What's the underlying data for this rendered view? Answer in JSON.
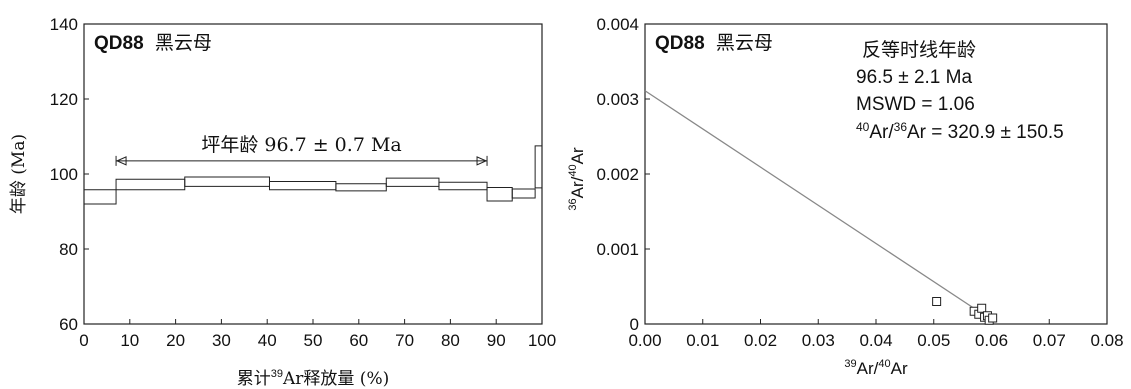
{
  "chart_data": [
    {
      "type": "step",
      "title": "",
      "sample": "QD88",
      "mineral": "黑云母",
      "xlabel": "累计39Ar释放量 (%)",
      "xlabel_parts": {
        "pre": "累计",
        "sup": "39",
        "post": "Ar释放量 (%)"
      },
      "ylabel": "年龄 (Ma)",
      "xlim": [
        0,
        100
      ],
      "ylim": [
        60,
        140
      ],
      "xticks": [
        0,
        10,
        20,
        30,
        40,
        50,
        60,
        70,
        80,
        90,
        100
      ],
      "yticks": [
        60,
        80,
        100,
        120,
        140
      ],
      "steps": [
        {
          "x0": 0,
          "x1": 7,
          "low": 92.0,
          "high": 95.8
        },
        {
          "x0": 7,
          "x1": 22,
          "low": 95.8,
          "high": 98.6
        },
        {
          "x0": 22,
          "x1": 40.5,
          "low": 96.7,
          "high": 99.2
        },
        {
          "x0": 40.5,
          "x1": 55,
          "low": 95.8,
          "high": 98.0
        },
        {
          "x0": 55,
          "x1": 66,
          "low": 95.5,
          "high": 97.4
        },
        {
          "x0": 66,
          "x1": 77.5,
          "low": 96.7,
          "high": 98.9
        },
        {
          "x0": 77.5,
          "x1": 88,
          "low": 95.8,
          "high": 97.8
        },
        {
          "x0": 88,
          "x1": 93.5,
          "low": 92.8,
          "high": 96.4
        },
        {
          "x0": 93.5,
          "x1": 98.5,
          "low": 93.6,
          "high": 96.0
        },
        {
          "x0": 98.5,
          "x1": 100,
          "low": 96.3,
          "high": 107.5
        }
      ],
      "plateau": {
        "x0": 7,
        "x1": 88,
        "y": 103.5,
        "label": "坪年龄 96.7 ± 0.7 Ma"
      }
    },
    {
      "type": "scatter",
      "title": "",
      "sample": "QD88",
      "mineral": "黑云母",
      "xlabel": "39Ar/40Ar",
      "ylabel": "36Ar/40Ar",
      "xlim": [
        0.0,
        0.08
      ],
      "ylim": [
        0,
        0.004
      ],
      "xticks": [
        "0.00",
        "0.01",
        "0.02",
        "0.03",
        "0.04",
        "0.05",
        "0.06",
        "0.07",
        "0.08"
      ],
      "yticks": [
        "0",
        "0.001",
        "0.002",
        "0.003",
        "0.004"
      ],
      "points": [
        {
          "x": 0.0505,
          "y": 0.0003
        },
        {
          "x": 0.057,
          "y": 0.00017
        },
        {
          "x": 0.0578,
          "y": 0.00013
        },
        {
          "x": 0.0583,
          "y": 0.00021
        },
        {
          "x": 0.0588,
          "y": 9e-05
        },
        {
          "x": 0.0593,
          "y": 0.00011
        },
        {
          "x": 0.0596,
          "y": 5e-05
        },
        {
          "x": 0.0602,
          "y": 8e-05
        }
      ],
      "regression": {
        "x0": 0.0,
        "y0": 0.00311,
        "x1": 0.0605,
        "y1": 3e-05
      },
      "annotation": [
        "反等时线年龄",
        "96.5 ± 2.1 Ma",
        "MSWD = 1.06",
        "40Ar/36Ar = 320.9 ± 150.5"
      ]
    }
  ]
}
